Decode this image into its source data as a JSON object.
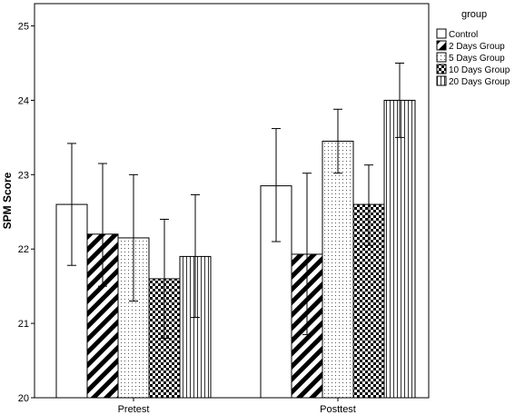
{
  "chart_data": {
    "type": "bar",
    "categories": [
      "Pretest",
      "Posttest"
    ],
    "ylabel": "SPM Score",
    "xlabel": "",
    "ylim": [
      20,
      25.3
    ],
    "yticks": [
      20,
      21,
      22,
      23,
      24,
      25
    ],
    "legend_title": "group",
    "legend_position": "right",
    "grid": false,
    "error_bars": true,
    "series": [
      {
        "name": "Control",
        "pattern": "white",
        "values": [
          22.6,
          22.85
        ],
        "err_low": [
          21.78,
          22.1
        ],
        "err_high": [
          23.42,
          23.62
        ]
      },
      {
        "name": "2 Days Group",
        "pattern": "diagonal-stripes",
        "values": [
          22.2,
          21.93
        ],
        "err_low": [
          21.5,
          20.85
        ],
        "err_high": [
          23.15,
          23.02
        ]
      },
      {
        "name": "5 Days Group",
        "pattern": "dots",
        "values": [
          22.15,
          23.45
        ],
        "err_low": [
          21.3,
          23.02
        ],
        "err_high": [
          23.0,
          23.88
        ]
      },
      {
        "name": "10 Days Group",
        "pattern": "checkerboard",
        "values": [
          21.6,
          22.6
        ],
        "err_low": [
          20.8,
          22.05
        ],
        "err_high": [
          22.4,
          23.13
        ]
      },
      {
        "name": "20 Days Group",
        "pattern": "vertical-stripes",
        "values": [
          21.9,
          24.0
        ],
        "err_low": [
          21.08,
          23.5
        ],
        "err_high": [
          22.73,
          24.5
        ]
      }
    ]
  }
}
